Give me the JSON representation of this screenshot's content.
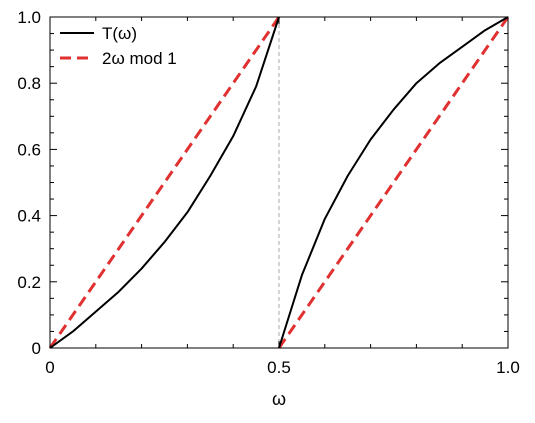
{
  "chart_data": {
    "type": "line",
    "title": "",
    "xlabel": "ω",
    "ylabel": "",
    "xlim": [
      0,
      1
    ],
    "ylim": [
      0,
      1
    ],
    "xticks": [
      {
        "value": 0,
        "label": "0"
      },
      {
        "value": 0.5,
        "label": "0.5"
      },
      {
        "value": 1,
        "label": "1.0"
      }
    ],
    "yticks": [
      {
        "value": 0,
        "label": "0"
      },
      {
        "value": 0.2,
        "label": "0.2"
      },
      {
        "value": 0.4,
        "label": "0.4"
      },
      {
        "value": 0.6,
        "label": "0.6"
      },
      {
        "value": 0.8,
        "label": "0.8"
      },
      {
        "value": 1,
        "label": "1.0"
      }
    ],
    "grid": false,
    "legend_position": "top-left",
    "vertical_reference_line": {
      "x": 0.5,
      "style": "dashed",
      "color": "#aaaaaa"
    },
    "series": [
      {
        "name": "T(ω)",
        "color": "#000000",
        "style": "solid",
        "segments": [
          [
            [
              0,
              0
            ],
            [
              0.05,
              0.05
            ],
            [
              0.1,
              0.11
            ],
            [
              0.15,
              0.17
            ],
            [
              0.2,
              0.24
            ],
            [
              0.25,
              0.32
            ],
            [
              0.3,
              0.41
            ],
            [
              0.35,
              0.52
            ],
            [
              0.4,
              0.64
            ],
            [
              0.45,
              0.79
            ],
            [
              0.5,
              1.0
            ]
          ],
          [
            [
              0.5,
              0.0
            ],
            [
              0.55,
              0.22
            ],
            [
              0.6,
              0.39
            ],
            [
              0.65,
              0.52
            ],
            [
              0.7,
              0.63
            ],
            [
              0.75,
              0.72
            ],
            [
              0.8,
              0.8
            ],
            [
              0.85,
              0.86
            ],
            [
              0.9,
              0.91
            ],
            [
              0.95,
              0.96
            ],
            [
              1.0,
              1.0
            ]
          ]
        ]
      },
      {
        "name": "2ω mod 1",
        "color": "#e03030",
        "style": "dashed",
        "segments": [
          [
            [
              0,
              0
            ],
            [
              0.5,
              1.0
            ]
          ],
          [
            [
              0.5,
              0.0
            ],
            [
              1.0,
              1.0
            ]
          ]
        ]
      }
    ]
  }
}
